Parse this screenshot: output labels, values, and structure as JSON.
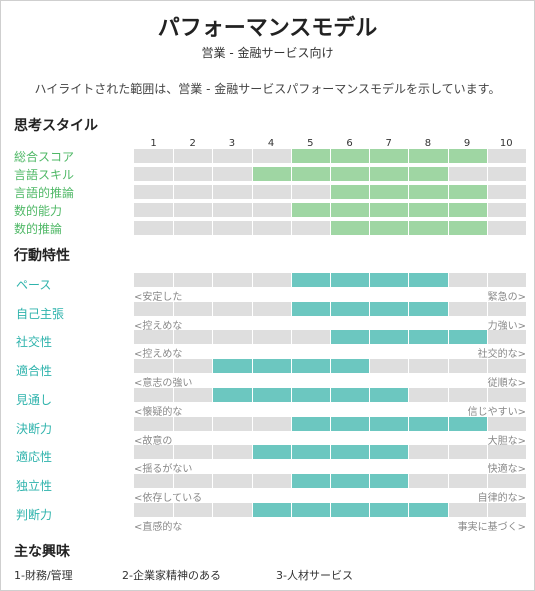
{
  "header": {
    "title": "パフォーマンスモデル",
    "subtitle": "営業 - 金融サービス向け",
    "description": "ハイライトされた範囲は、営業 - 金融サービスパフォーマンスモデルを示しています。"
  },
  "colors": {
    "thinking_accent": "#4fb866",
    "behavior_accent": "#2fb3ac",
    "track": "#dedede"
  },
  "thinking": {
    "heading": "思考スタイル",
    "scale": [
      "1",
      "2",
      "3",
      "4",
      "5",
      "6",
      "7",
      "8",
      "9",
      "10"
    ],
    "rows": [
      {
        "label": "総合スコア",
        "range": [
          5,
          9
        ]
      },
      {
        "label": "言語スキル",
        "range": [
          4,
          8
        ]
      },
      {
        "label": "言語的推論",
        "range": [
          6,
          9
        ]
      },
      {
        "label": "数的能力",
        "range": [
          5,
          9
        ]
      },
      {
        "label": "数的推論",
        "range": [
          6,
          9
        ]
      }
    ]
  },
  "behavior": {
    "heading": "行動特性",
    "rows": [
      {
        "label": "ペース",
        "left": "<安定した",
        "right": "緊急の>",
        "range": [
          5,
          8
        ]
      },
      {
        "label": "自己主張",
        "left": "<控えめな",
        "right": "力強い>",
        "range": [
          5,
          8
        ]
      },
      {
        "label": "社交性",
        "left": "<控えめな",
        "right": "社交的な>",
        "range": [
          6,
          9
        ]
      },
      {
        "label": "適合性",
        "left": "<意志の強い",
        "right": "従順な>",
        "range": [
          3,
          6
        ]
      },
      {
        "label": "見通し",
        "left": "<懐疑的な",
        "right": "信じやすい>",
        "range": [
          3,
          7
        ]
      },
      {
        "label": "決断力",
        "left": "<故意の",
        "right": "大胆な>",
        "range": [
          5,
          9
        ]
      },
      {
        "label": "適応性",
        "left": "<揺るがない",
        "right": "快適な>",
        "range": [
          4,
          7
        ]
      },
      {
        "label": "独立性",
        "left": "<依存している",
        "right": "自律的な>",
        "range": [
          5,
          7
        ]
      },
      {
        "label": "判断力",
        "left": "<直感的な",
        "right": "事実に基づく>",
        "range": [
          4,
          8
        ]
      }
    ]
  },
  "interests": {
    "heading": "主な興味",
    "items": [
      "1-財務/管理",
      "2-企業家精神のある",
      "3-人材サービス"
    ]
  }
}
